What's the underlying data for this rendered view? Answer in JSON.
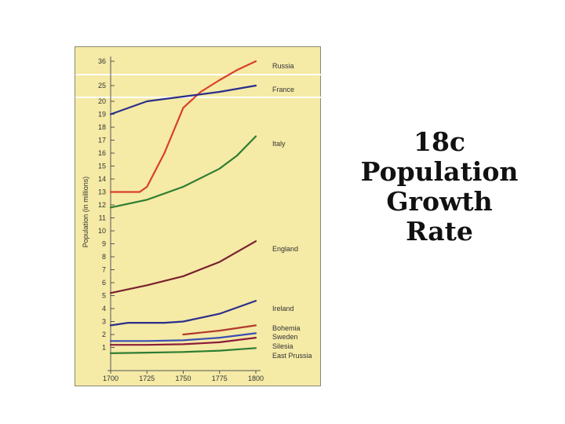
{
  "slide": {
    "title_lines": [
      "18c",
      "Population",
      "Growth",
      "Rate"
    ]
  },
  "chart_data": {
    "type": "line",
    "ylabel": "Population (in millions)",
    "xlabel": "",
    "x_ticks": [
      "1700",
      "1725",
      "1750",
      "1775",
      "1800"
    ],
    "y_ticks": [
      "1",
      "2",
      "3",
      "4",
      "5",
      "6",
      "7",
      "8",
      "9",
      "10",
      "11",
      "12",
      "13",
      "14",
      "15",
      "16",
      "17",
      "18",
      "19",
      "20",
      "25",
      "36"
    ],
    "axis_breaks": true,
    "grid": false,
    "series": [
      {
        "name": "Russia",
        "color": "#d8402a",
        "points": [
          [
            1700,
            13
          ],
          [
            1705,
            13
          ],
          [
            1710,
            13
          ],
          [
            1715,
            13
          ],
          [
            1720,
            13
          ],
          [
            1725,
            13.4
          ],
          [
            1737,
            16
          ],
          [
            1750,
            19.5
          ],
          [
            1762,
            23
          ],
          [
            1775,
            27.5
          ],
          [
            1787,
            32
          ],
          [
            1800,
            36
          ]
        ]
      },
      {
        "name": "France",
        "color": "#2b2f8a",
        "points": [
          [
            1700,
            19
          ],
          [
            1725,
            20
          ],
          [
            1750,
            21.5
          ],
          [
            1775,
            23
          ],
          [
            1800,
            25
          ]
        ]
      },
      {
        "name": "Italy",
        "color": "#2e7d32",
        "points": [
          [
            1700,
            11.8
          ],
          [
            1725,
            12.4
          ],
          [
            1750,
            13.4
          ],
          [
            1775,
            14.8
          ],
          [
            1787,
            15.8
          ],
          [
            1800,
            17.3
          ]
        ]
      },
      {
        "name": "England",
        "color": "#7a2030",
        "points": [
          [
            1700,
            5.2
          ],
          [
            1725,
            5.8
          ],
          [
            1750,
            6.5
          ],
          [
            1775,
            7.6
          ],
          [
            1800,
            9.2
          ]
        ]
      },
      {
        "name": "Ireland",
        "color": "#2b2f8a",
        "points": [
          [
            1700,
            2.7
          ],
          [
            1712,
            2.9
          ],
          [
            1725,
            2.9
          ],
          [
            1737,
            2.9
          ],
          [
            1750,
            3
          ],
          [
            1775,
            3.6
          ],
          [
            1800,
            4.6
          ]
        ]
      },
      {
        "name": "Bohemia",
        "color": "#b03a2e",
        "points": [
          [
            1750,
            2
          ],
          [
            1775,
            2.3
          ],
          [
            1800,
            2.7
          ]
        ]
      },
      {
        "name": "Sweden",
        "color": "#3b4fb0",
        "points": [
          [
            1700,
            1.5
          ],
          [
            1725,
            1.5
          ],
          [
            1750,
            1.55
          ],
          [
            1775,
            1.75
          ],
          [
            1800,
            2.1
          ]
        ]
      },
      {
        "name": "Silesia",
        "color": "#8a1c3a",
        "points": [
          [
            1700,
            1.2
          ],
          [
            1725,
            1.2
          ],
          [
            1750,
            1.25
          ],
          [
            1775,
            1.4
          ],
          [
            1800,
            1.75
          ]
        ]
      },
      {
        "name": "East Prussia",
        "color": "#2e7d32",
        "points": [
          [
            1700,
            0.55
          ],
          [
            1725,
            0.6
          ],
          [
            1750,
            0.65
          ],
          [
            1775,
            0.75
          ],
          [
            1800,
            0.95
          ]
        ]
      }
    ]
  }
}
